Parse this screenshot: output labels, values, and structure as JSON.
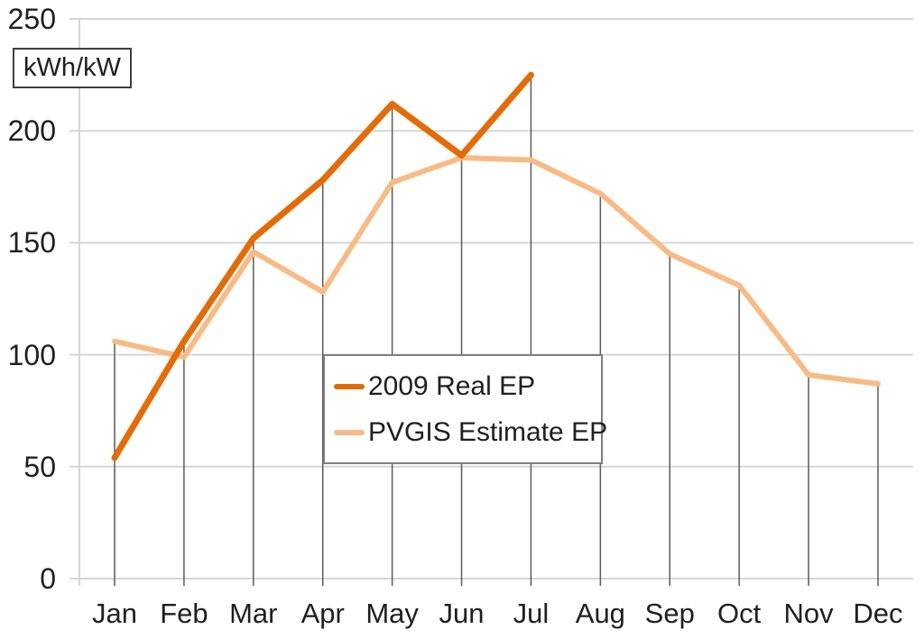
{
  "unit_box": {
    "label": "kWh/kW"
  },
  "chart_data": {
    "type": "line",
    "unit_label": "kWh/kW",
    "categories": [
      "Jan",
      "Feb",
      "Mar",
      "Apr",
      "May",
      "Jun",
      "Jul",
      "Aug",
      "Sep",
      "Oct",
      "Nov",
      "Dec"
    ],
    "yticks": [
      0,
      50,
      100,
      150,
      200,
      250
    ],
    "ylim": [
      0,
      250
    ],
    "grid": {
      "horizontal_gridlines": true,
      "vertical_drop_lines": "one per month, from the highest series point down past the x-axis"
    },
    "legend_position": "center-overlay",
    "series": [
      {
        "name": "2009 Real EP",
        "color": "#E36C09",
        "line_width": 7,
        "values": [
          54,
          106,
          152,
          178,
          212,
          189,
          225,
          null,
          null,
          null,
          null,
          null
        ]
      },
      {
        "name": "PVGIS Estimate EP",
        "color": "#F8BB86",
        "line_width": 6,
        "values": [
          106,
          99,
          146,
          128,
          177,
          188,
          187,
          172,
          145,
          131,
          91,
          87
        ]
      }
    ],
    "colors": {
      "gridline": "#D6D6D6",
      "drop_line": "#5a5a5a",
      "axis_text": "#1F1F1F"
    }
  }
}
